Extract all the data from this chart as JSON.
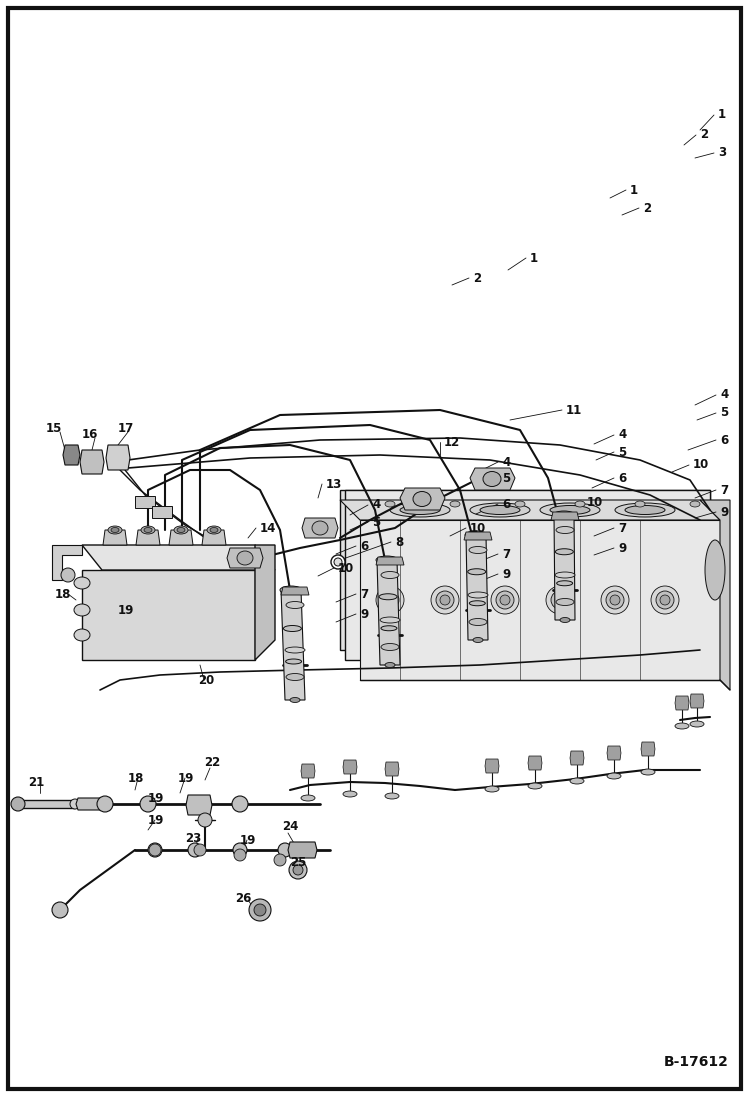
{
  "figure_width": 7.49,
  "figure_height": 10.97,
  "dpi": 100,
  "background_color": "#ffffff",
  "border_color": "#111111",
  "border_linewidth": 4,
  "diagram_label": "B-17612",
  "line_color": "#111111",
  "lw_main": 1.2,
  "lw_thin": 0.7,
  "lw_med": 0.9,
  "gray_fill": "#c8c8c8",
  "dark_fill": "#555555",
  "mid_fill": "#999999"
}
